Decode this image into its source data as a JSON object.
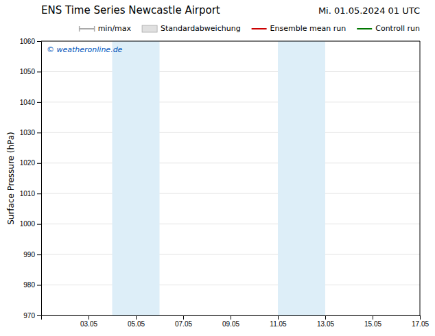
{
  "chart_data": {
    "type": "line",
    "title": "ENS Time Series Newcastle Airport",
    "subtitle": "Mi. 01.05.2024 01 UTC",
    "ylabel": "Surface Pressure (hPa)",
    "annotations": [
      {
        "text": "© weatheronline.de",
        "color": "#0055bb"
      }
    ],
    "xlim": [
      1.05,
      17.05
    ],
    "xticks": [
      {
        "value": 3.05,
        "label": "03.05"
      },
      {
        "value": 5.05,
        "label": "05.05"
      },
      {
        "value": 7.05,
        "label": "07.05"
      },
      {
        "value": 9.05,
        "label": "09.05"
      },
      {
        "value": 11.05,
        "label": "11.05"
      },
      {
        "value": 13.05,
        "label": "13.05"
      },
      {
        "value": 15.05,
        "label": "15.05"
      },
      {
        "value": 17.05,
        "label": "17.05"
      }
    ],
    "ylim": [
      970,
      1060
    ],
    "yticks": [
      970,
      980,
      990,
      1000,
      1010,
      1020,
      1030,
      1040,
      1050,
      1060
    ],
    "grid": "y",
    "legend": "top-right",
    "shaded_regions": [
      {
        "start": 4.05,
        "end": 6.05,
        "color": "#ddeef8"
      },
      {
        "start": 11.05,
        "end": 13.05,
        "color": "#ddeef8"
      }
    ],
    "x": [],
    "series": [
      {
        "name": "min/max",
        "color": "#aaaaaa",
        "type": "line",
        "marker": "|",
        "values": []
      },
      {
        "name": "Standardabweichung",
        "color": "#e0e0e0",
        "type": "area",
        "values": []
      },
      {
        "name": "Ensemble mean run",
        "color": "#cc0000",
        "type": "line",
        "values": []
      },
      {
        "name": "Controll run",
        "color": "#007700",
        "type": "line",
        "values": []
      }
    ]
  }
}
